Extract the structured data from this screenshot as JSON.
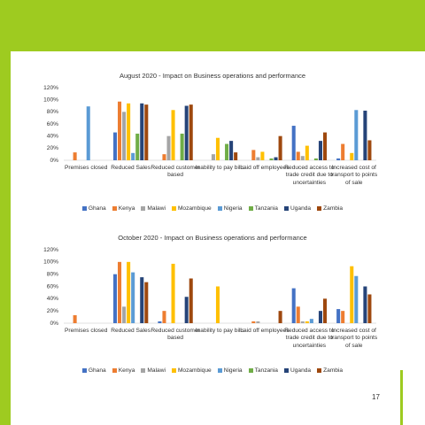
{
  "page_number": "17",
  "chart_data": [
    {
      "type": "bar",
      "title": "August 2020 - Impact on Business operations and performance",
      "categories": [
        "Premises closed",
        "Reduced Sales",
        "Reduced customer based",
        "Inability to pay bills",
        "Laid off employees",
        "Reduced access to trade credit due to uncertainties",
        "Increased cost of transport to points of sale"
      ],
      "ylim": [
        0,
        120
      ],
      "yticks": [
        {
          "value": 0,
          "label": "0%"
        },
        {
          "value": 20,
          "label": "20%"
        },
        {
          "value": 40,
          "label": "40%"
        },
        {
          "value": 60,
          "label": "60%"
        },
        {
          "value": 80,
          "label": "80%"
        },
        {
          "value": 100,
          "label": "100%"
        },
        {
          "value": 120,
          "label": "120%"
        }
      ],
      "series": [
        {
          "name": "Ghana",
          "color": "#4472c4",
          "values": [
            0,
            46,
            0,
            0,
            0,
            57,
            3
          ]
        },
        {
          "name": "Kenya",
          "color": "#ed7d31",
          "values": [
            13,
            97,
            10,
            0,
            17,
            14,
            27
          ]
        },
        {
          "name": "Malawi",
          "color": "#a5a5a5",
          "values": [
            0,
            80,
            40,
            10,
            5,
            7,
            0
          ]
        },
        {
          "name": "Mozambique",
          "color": "#ffc000",
          "values": [
            0,
            94,
            83,
            37,
            14,
            24,
            12
          ]
        },
        {
          "name": "Nigeria",
          "color": "#5b9bd5",
          "values": [
            89,
            12,
            0,
            0,
            0,
            0,
            83
          ]
        },
        {
          "name": "Tanzania",
          "color": "#70ad47",
          "values": [
            0,
            44,
            44,
            27,
            3,
            3,
            0
          ]
        },
        {
          "name": "Uganda",
          "color": "#264478",
          "values": [
            0,
            94,
            90,
            32,
            5,
            32,
            82
          ]
        },
        {
          "name": "Zambia",
          "color": "#9e480e",
          "values": [
            0,
            92,
            92,
            13,
            40,
            46,
            33
          ]
        }
      ]
    },
    {
      "type": "bar",
      "title": "October 2020 - Impact on Business operations and performance",
      "categories": [
        "Premises closed",
        "Reduced Sales",
        "Reduced customer based",
        "Inability to pay bills",
        "Laid off employees",
        "Reduced access to trade credit due to uncertainties",
        "Increased cost of transport to points of sale"
      ],
      "ylim": [
        0,
        120
      ],
      "yticks": [
        {
          "value": 0,
          "label": "0%"
        },
        {
          "value": 20,
          "label": "20%"
        },
        {
          "value": 40,
          "label": "40%"
        },
        {
          "value": 60,
          "label": "60%"
        },
        {
          "value": 80,
          "label": "80%"
        },
        {
          "value": 100,
          "label": "100%"
        },
        {
          "value": 120,
          "label": "120%"
        }
      ],
      "series": [
        {
          "name": "Ghana",
          "color": "#4472c4",
          "values": [
            0,
            80,
            3,
            0,
            0,
            57,
            23
          ]
        },
        {
          "name": "Kenya",
          "color": "#ed7d31",
          "values": [
            13,
            100,
            20,
            0,
            3,
            27,
            20
          ]
        },
        {
          "name": "Malawi",
          "color": "#a5a5a5",
          "values": [
            0,
            27,
            0,
            0,
            3,
            3,
            0
          ]
        },
        {
          "name": "Mozambique",
          "color": "#ffc000",
          "values": [
            0,
            100,
            97,
            60,
            0,
            3,
            93
          ]
        },
        {
          "name": "Nigeria",
          "color": "#5b9bd5",
          "values": [
            0,
            83,
            0,
            0,
            0,
            7,
            77
          ]
        },
        {
          "name": "Tanzania",
          "color": "#70ad47",
          "values": [
            0,
            0,
            0,
            0,
            0,
            0,
            0
          ]
        },
        {
          "name": "Uganda",
          "color": "#264478",
          "values": [
            0,
            75,
            43,
            0,
            0,
            20,
            60
          ]
        },
        {
          "name": "Zambia",
          "color": "#9e480e",
          "values": [
            0,
            67,
            73,
            0,
            20,
            40,
            47
          ]
        }
      ]
    }
  ]
}
